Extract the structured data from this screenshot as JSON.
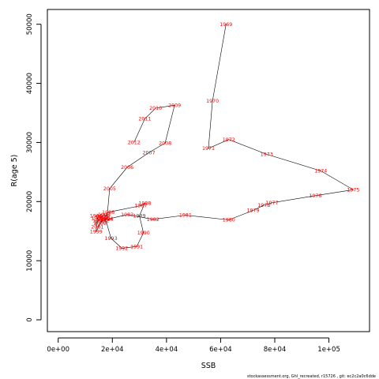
{
  "chart_data": {
    "type": "line",
    "xlabel": "SSB",
    "ylabel": "R(age 5)",
    "xlim": [
      -4000,
      115000
    ],
    "ylim": [
      -2000,
      52500
    ],
    "xticks": [
      0,
      20000,
      40000,
      60000,
      80000,
      100000
    ],
    "xtick_labels": [
      "0e+00",
      "2e+04",
      "4e+04",
      "6e+04",
      "8e+04",
      "1e+05"
    ],
    "yticks": [
      0,
      10000,
      20000,
      30000,
      40000,
      50000
    ],
    "ytick_labels": [
      "0",
      "10000",
      "20000",
      "30000",
      "40000",
      "50000"
    ],
    "grid": false,
    "point_labels": true,
    "colors": {
      "line": "#000000",
      "labels": "#ff0000"
    },
    "points": [
      {
        "year": "1969",
        "ssb": 62000,
        "r": 50000
      },
      {
        "year": "1970",
        "ssb": 57000,
        "r": 37000
      },
      {
        "year": "1971",
        "ssb": 55500,
        "r": 29000
      },
      {
        "year": "1972",
        "ssb": 63000,
        "r": 30500
      },
      {
        "year": "1973",
        "ssb": 77000,
        "r": 28000
      },
      {
        "year": "1974",
        "ssb": 97000,
        "r": 25200
      },
      {
        "year": "1975",
        "ssb": 109000,
        "r": 22000
      },
      {
        "year": "1976",
        "ssb": 95000,
        "r": 21000
      },
      {
        "year": "1977",
        "ssb": 79000,
        "r": 19800
      },
      {
        "year": "1978",
        "ssb": 76000,
        "r": 19400
      },
      {
        "year": "1979",
        "ssb": 72000,
        "r": 18500
      },
      {
        "year": "1980",
        "ssb": 63000,
        "r": 16900
      },
      {
        "year": "1981",
        "ssb": 47000,
        "r": 17700
      },
      {
        "year": "1982",
        "ssb": 35000,
        "r": 17000
      },
      {
        "year": "1983",
        "ssb": 25500,
        "r": 17800
      },
      {
        "year": "1984",
        "ssb": 18000,
        "r": 17000
      },
      {
        "year": "1985",
        "ssb": 17000,
        "r": 17200
      },
      {
        "year": "1986",
        "ssb": 18500,
        "r": 18200
      },
      {
        "year": "1987",
        "ssb": 30500,
        "r": 19300
      },
      {
        "year": "1988",
        "ssb": 32000,
        "r": 19700
      },
      {
        "year": "1989",
        "ssb": 30000,
        "r": 17600
      },
      {
        "year": "1990",
        "ssb": 31500,
        "r": 14700
      },
      {
        "year": "1991",
        "ssb": 29000,
        "r": 12400
      },
      {
        "year": "1992",
        "ssb": 23500,
        "r": 12100
      },
      {
        "year": "1993",
        "ssb": 19500,
        "r": 13800
      },
      {
        "year": "1994",
        "ssb": 17000,
        "r": 17800
      },
      {
        "year": "1995",
        "ssb": 15000,
        "r": 16800
      },
      {
        "year": "1996",
        "ssb": 14000,
        "r": 17600
      },
      {
        "year": "1997",
        "ssb": 16500,
        "r": 17500
      },
      {
        "year": "1998",
        "ssb": 14500,
        "r": 17200
      },
      {
        "year": "1999",
        "ssb": 14000,
        "r": 14900
      },
      {
        "year": "2000",
        "ssb": 15500,
        "r": 16300
      },
      {
        "year": "2001",
        "ssb": 14500,
        "r": 15700
      },
      {
        "year": "2002",
        "ssb": 16500,
        "r": 16800
      },
      {
        "year": "2003",
        "ssb": 15500,
        "r": 16500
      },
      {
        "year": "2004",
        "ssb": 18000,
        "r": 17100
      },
      {
        "year": "2005",
        "ssb": 19000,
        "r": 22200
      },
      {
        "year": "2006",
        "ssb": 25500,
        "r": 25800
      },
      {
        "year": "2007",
        "ssb": 33500,
        "r": 28300
      },
      {
        "year": "2008",
        "ssb": 39500,
        "r": 29900
      },
      {
        "year": "2009",
        "ssb": 43000,
        "r": 36300
      },
      {
        "year": "2010",
        "ssb": 36000,
        "r": 35800
      },
      {
        "year": "2011",
        "ssb": 32000,
        "r": 34000
      },
      {
        "year": "2012",
        "ssb": 28000,
        "r": 30000
      }
    ]
  },
  "footer": "stockassessment.org, Ghl_recreated, r15726 ,  git: ec2c2a0c6dde"
}
